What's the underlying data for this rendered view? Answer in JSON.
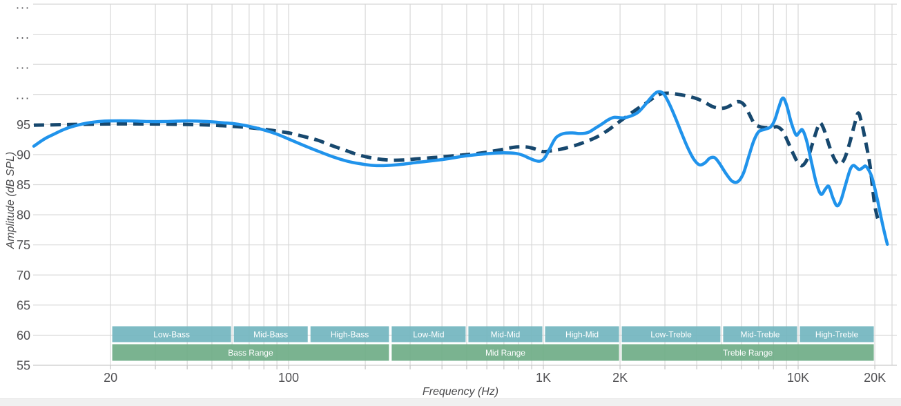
{
  "chart_data": {
    "type": "line",
    "title": "",
    "xlabel": "Frequency (Hz)",
    "ylabel": "Amplitude (dB SPL)",
    "x_scale": "log",
    "x_domain_hz": [
      9.9,
      23200
    ],
    "ylim": [
      55,
      115
    ],
    "grid": true,
    "legend": "none",
    "y_ticks": [
      {
        "db": 115,
        "label": "..."
      },
      {
        "db": 110,
        "label": "..."
      },
      {
        "db": 105,
        "label": "..."
      },
      {
        "db": 100,
        "label": "..."
      },
      {
        "db": 95,
        "label": "95"
      },
      {
        "db": 90,
        "label": "90"
      },
      {
        "db": 85,
        "label": "85"
      },
      {
        "db": 80,
        "label": "80"
      },
      {
        "db": 75,
        "label": "75"
      },
      {
        "db": 70,
        "label": "70"
      },
      {
        "db": 65,
        "label": "65"
      },
      {
        "db": 60,
        "label": "60"
      },
      {
        "db": 55,
        "label": "55"
      }
    ],
    "x_major_ticks": [
      {
        "hz": 20,
        "label": "20"
      },
      {
        "hz": 100,
        "label": "100"
      },
      {
        "hz": 1000,
        "label": "1K"
      },
      {
        "hz": 2000,
        "label": "2K"
      },
      {
        "hz": 10000,
        "label": "10K"
      },
      {
        "hz": 20000,
        "label": "20K"
      }
    ],
    "x_minor_ticks_hz": [
      20,
      30,
      40,
      50,
      60,
      70,
      80,
      90,
      100,
      200,
      300,
      400,
      500,
      600,
      700,
      800,
      900,
      1000,
      2000,
      3000,
      4000,
      5000,
      6000,
      7000,
      8000,
      9000,
      10000,
      20000
    ],
    "series": [
      {
        "id": "dashed-navy-curve",
        "style": "dashed",
        "color": "#17486E",
        "width": 5,
        "dash": "15 9",
        "points_hz_db": [
          [
            10,
            94.9
          ],
          [
            14,
            95.0
          ],
          [
            20,
            95.1
          ],
          [
            28,
            95.1
          ],
          [
            40,
            95.0
          ],
          [
            50,
            94.9
          ],
          [
            60,
            94.7
          ],
          [
            70,
            94.5
          ],
          [
            80,
            94.2
          ],
          [
            90,
            93.9
          ],
          [
            100,
            93.6
          ],
          [
            115,
            93.0
          ],
          [
            130,
            92.4
          ],
          [
            150,
            91.4
          ],
          [
            170,
            90.6
          ],
          [
            190,
            89.9
          ],
          [
            215,
            89.4
          ],
          [
            245,
            89.1
          ],
          [
            280,
            89.1
          ],
          [
            320,
            89.3
          ],
          [
            370,
            89.5
          ],
          [
            420,
            89.7
          ],
          [
            470,
            89.9
          ],
          [
            530,
            90.1
          ],
          [
            600,
            90.4
          ],
          [
            680,
            90.8
          ],
          [
            760,
            91.2
          ],
          [
            820,
            91.3
          ],
          [
            880,
            91.2
          ],
          [
            950,
            90.8
          ],
          [
            1000,
            90.5
          ],
          [
            1100,
            90.7
          ],
          [
            1200,
            91.0
          ],
          [
            1350,
            91.6
          ],
          [
            1500,
            92.3
          ],
          [
            1650,
            93.1
          ],
          [
            1800,
            94.1
          ],
          [
            1950,
            95.2
          ],
          [
            2100,
            96.2
          ],
          [
            2300,
            97.4
          ],
          [
            2500,
            98.4
          ],
          [
            2700,
            99.4
          ],
          [
            2900,
            100.1
          ],
          [
            3100,
            100.2
          ],
          [
            3400,
            100.0
          ],
          [
            3700,
            99.7
          ],
          [
            4000,
            99.3
          ],
          [
            4300,
            98.7
          ],
          [
            4600,
            98.0
          ],
          [
            4900,
            97.7
          ],
          [
            5200,
            97.8
          ],
          [
            5500,
            98.3
          ],
          [
            5800,
            98.8
          ],
          [
            6100,
            98.4
          ],
          [
            6400,
            96.9
          ],
          [
            6700,
            95.3
          ],
          [
            7000,
            94.7
          ],
          [
            7400,
            94.5
          ],
          [
            7900,
            94.5
          ],
          [
            8300,
            94.6
          ],
          [
            8700,
            93.9
          ],
          [
            9100,
            92.2
          ],
          [
            9600,
            90.0
          ],
          [
            10000,
            88.6
          ],
          [
            10400,
            88.2
          ],
          [
            10900,
            89.4
          ],
          [
            11400,
            91.9
          ],
          [
            11900,
            94.4
          ],
          [
            12200,
            95.3
          ],
          [
            12600,
            94.3
          ],
          [
            13100,
            92.1
          ],
          [
            13600,
            90.1
          ],
          [
            14100,
            88.8
          ],
          [
            14600,
            88.4
          ],
          [
            15200,
            89.3
          ],
          [
            15900,
            91.8
          ],
          [
            16600,
            94.8
          ],
          [
            17200,
            96.9
          ],
          [
            17700,
            95.5
          ],
          [
            18300,
            92.7
          ],
          [
            19100,
            88.5
          ],
          [
            19600,
            84.5
          ],
          [
            20000,
            81.5
          ],
          [
            20500,
            79.5
          ],
          [
            20900,
            78.7
          ]
        ]
      },
      {
        "id": "solid-blue-curve",
        "style": "solid",
        "color": "#2093EB",
        "width": 4.5,
        "dash": "",
        "points_hz_db": [
          [
            10,
            91.4
          ],
          [
            11,
            92.6
          ],
          [
            12,
            93.4
          ],
          [
            13,
            94.1
          ],
          [
            14,
            94.6
          ],
          [
            16,
            95.2
          ],
          [
            18,
            95.5
          ],
          [
            20,
            95.6
          ],
          [
            24,
            95.6
          ],
          [
            28,
            95.5
          ],
          [
            33,
            95.5
          ],
          [
            40,
            95.6
          ],
          [
            48,
            95.5
          ],
          [
            55,
            95.3
          ],
          [
            62,
            95.1
          ],
          [
            70,
            94.7
          ],
          [
            80,
            94.1
          ],
          [
            90,
            93.4
          ],
          [
            100,
            92.6
          ],
          [
            115,
            91.5
          ],
          [
            130,
            90.6
          ],
          [
            150,
            89.6
          ],
          [
            170,
            88.9
          ],
          [
            190,
            88.5
          ],
          [
            215,
            88.2
          ],
          [
            245,
            88.2
          ],
          [
            280,
            88.4
          ],
          [
            320,
            88.7
          ],
          [
            370,
            89.0
          ],
          [
            420,
            89.3
          ],
          [
            480,
            89.7
          ],
          [
            550,
            90.0
          ],
          [
            620,
            90.2
          ],
          [
            700,
            90.3
          ],
          [
            780,
            90.2
          ],
          [
            830,
            89.9
          ],
          [
            880,
            89.4
          ],
          [
            930,
            89.0
          ],
          [
            970,
            88.9
          ],
          [
            1010,
            89.4
          ],
          [
            1060,
            91.0
          ],
          [
            1120,
            92.8
          ],
          [
            1200,
            93.5
          ],
          [
            1300,
            93.6
          ],
          [
            1400,
            93.5
          ],
          [
            1500,
            93.7
          ],
          [
            1600,
            94.4
          ],
          [
            1700,
            95.1
          ],
          [
            1800,
            95.8
          ],
          [
            1900,
            96.2
          ],
          [
            2050,
            96.1
          ],
          [
            2200,
            96.4
          ],
          [
            2350,
            97.0
          ],
          [
            2500,
            98.2
          ],
          [
            2650,
            99.5
          ],
          [
            2800,
            100.4
          ],
          [
            2950,
            100.2
          ],
          [
            3100,
            98.7
          ],
          [
            3300,
            96.1
          ],
          [
            3500,
            93.4
          ],
          [
            3700,
            91.0
          ],
          [
            3900,
            89.2
          ],
          [
            4100,
            88.3
          ],
          [
            4300,
            88.6
          ],
          [
            4500,
            89.4
          ],
          [
            4700,
            89.5
          ],
          [
            4900,
            88.6
          ],
          [
            5200,
            86.9
          ],
          [
            5500,
            85.6
          ],
          [
            5800,
            85.5
          ],
          [
            6100,
            86.9
          ],
          [
            6400,
            89.7
          ],
          [
            6700,
            92.3
          ],
          [
            7000,
            93.8
          ],
          [
            7400,
            94.2
          ],
          [
            7800,
            94.6
          ],
          [
            8100,
            95.8
          ],
          [
            8400,
            97.9
          ],
          [
            8700,
            99.4
          ],
          [
            9000,
            98.3
          ],
          [
            9400,
            95.3
          ],
          [
            9800,
            93.3
          ],
          [
            10100,
            93.7
          ],
          [
            10400,
            94.1
          ],
          [
            10800,
            92.3
          ],
          [
            11300,
            88.6
          ],
          [
            11800,
            85.2
          ],
          [
            12300,
            83.4
          ],
          [
            12800,
            84.3
          ],
          [
            13200,
            84.7
          ],
          [
            13700,
            82.8
          ],
          [
            14200,
            81.5
          ],
          [
            14700,
            82.3
          ],
          [
            15300,
            84.8
          ],
          [
            16000,
            87.5
          ],
          [
            16500,
            88.2
          ],
          [
            17000,
            87.8
          ],
          [
            17400,
            87.5
          ],
          [
            17900,
            87.8
          ],
          [
            18400,
            88.1
          ],
          [
            19000,
            87.3
          ],
          [
            19500,
            86.2
          ],
          [
            20000,
            84.4
          ],
          [
            20600,
            82.0
          ],
          [
            21300,
            79.0
          ],
          [
            22000,
            76.4
          ],
          [
            22400,
            75.1
          ]
        ]
      }
    ],
    "frequency_bands": {
      "sub_row_color": "#72B5BF",
      "main_row_color": "#6FAD87",
      "label_color": "#FFFFFF",
      "sub_row": [
        {
          "label": "Low-Bass",
          "from_hz": 20,
          "to_hz": 60
        },
        {
          "label": "Mid-Bass",
          "from_hz": 60,
          "to_hz": 120
        },
        {
          "label": "High-Bass",
          "from_hz": 120,
          "to_hz": 250
        },
        {
          "label": "Low-Mid",
          "from_hz": 250,
          "to_hz": 500
        },
        {
          "label": "Mid-Mid",
          "from_hz": 500,
          "to_hz": 1000
        },
        {
          "label": "High-Mid",
          "from_hz": 1000,
          "to_hz": 2000
        },
        {
          "label": "Low-Treble",
          "from_hz": 2000,
          "to_hz": 5000
        },
        {
          "label": "Mid-Treble",
          "from_hz": 5000,
          "to_hz": 10000
        },
        {
          "label": "High-Treble",
          "from_hz": 10000,
          "to_hz": 20000
        }
      ],
      "main_row": [
        {
          "label": "Bass Range",
          "from_hz": 20,
          "to_hz": 250
        },
        {
          "label": "Mid Range",
          "from_hz": 250,
          "to_hz": 2000
        },
        {
          "label": "Treble Range",
          "from_hz": 2000,
          "to_hz": 20000
        }
      ]
    },
    "colors": {
      "gridline": "#D7D7D7",
      "axis_line": "#C9C9C9",
      "tick_mark": "#C4C4C4",
      "tick_label": "#515154",
      "axis_title": "#4A4A4C",
      "background": "#FFFFFF",
      "scrollbar_track": "#F0F0F0"
    }
  }
}
